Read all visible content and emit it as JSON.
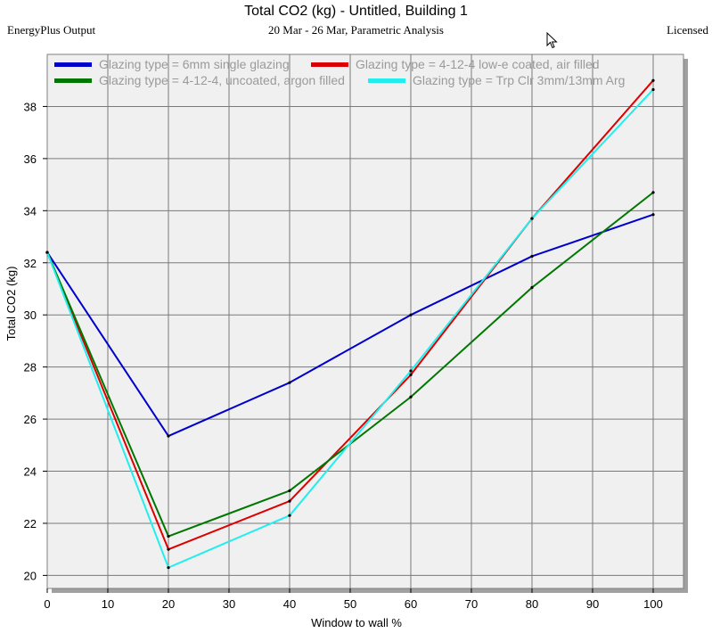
{
  "header": {
    "title": "Total CO2 (kg) - Untitled, Building 1",
    "subtitle": "20 Mar - 26 Mar, Parametric Analysis",
    "left_label": "EnergyPlus Output",
    "right_label": "Licensed"
  },
  "chart_data": {
    "type": "line",
    "title": "Total CO2 (kg) - Untitled, Building 1",
    "subtitle": "20 Mar - 26 Mar, Parametric Analysis",
    "xlabel": "Window to wall %",
    "ylabel": "Total CO2 (kg)",
    "xlim": [
      0,
      105
    ],
    "ylim": [
      19.5,
      40
    ],
    "xticks": [
      0,
      10,
      20,
      30,
      40,
      50,
      60,
      70,
      80,
      90,
      100
    ],
    "yticks": [
      20,
      22,
      24,
      26,
      28,
      30,
      32,
      34,
      36,
      38
    ],
    "grid": true,
    "legend_position": "top",
    "x": [
      0,
      20,
      40,
      60,
      80,
      100
    ],
    "series": [
      {
        "name": "Glazing type = 6mm single glazing",
        "color": "#0000cc",
        "values": [
          32.4,
          25.35,
          27.4,
          30.0,
          32.25,
          33.85
        ]
      },
      {
        "name": "Glazing type = 4-12-4 low-e coated, air filled",
        "color": "#dd0000",
        "values": [
          32.4,
          21.0,
          22.85,
          27.7,
          33.7,
          39.0
        ]
      },
      {
        "name": "Glazing type = 4-12-4, uncoated, argon filled",
        "color": "#007700",
        "values": [
          32.4,
          21.5,
          23.25,
          26.85,
          31.05,
          34.7
        ]
      },
      {
        "name": "Glazing type = Trp Clr 3mm/13mm Arg",
        "color": "#22eeee",
        "values": [
          32.4,
          20.3,
          22.3,
          27.85,
          33.7,
          38.65
        ]
      }
    ]
  }
}
